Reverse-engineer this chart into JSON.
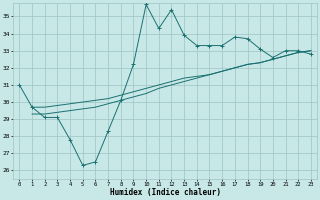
{
  "xlabel": "Humidex (Indice chaleur)",
  "background_color": "#c8e8e8",
  "grid_color": "#9ec4c4",
  "line_color": "#1a7070",
  "xlim": [
    -0.5,
    23.5
  ],
  "ylim": [
    25.5,
    35.8
  ],
  "xticks": [
    0,
    1,
    2,
    3,
    4,
    5,
    6,
    7,
    8,
    9,
    10,
    11,
    12,
    13,
    14,
    15,
    16,
    17,
    18,
    19,
    20,
    21,
    22,
    23
  ],
  "yticks": [
    26,
    27,
    28,
    29,
    30,
    31,
    32,
    33,
    34,
    35
  ],
  "line1_x": [
    0,
    1,
    2,
    3,
    4,
    5,
    6,
    7,
    8,
    9,
    10,
    11,
    12,
    13,
    14,
    15,
    16,
    17,
    18,
    19,
    20,
    21,
    22,
    23
  ],
  "line1_y": [
    31.0,
    29.7,
    29.1,
    29.1,
    27.8,
    26.3,
    26.5,
    28.3,
    30.1,
    32.2,
    35.7,
    34.3,
    35.4,
    33.9,
    33.3,
    33.3,
    33.3,
    33.8,
    33.7,
    33.1,
    32.6,
    33.0,
    33.0,
    32.8
  ],
  "line2_x": [
    1,
    2,
    3,
    4,
    5,
    6,
    7,
    8,
    9,
    10,
    11,
    12,
    13,
    14,
    15,
    16,
    17,
    18,
    19,
    20,
    21,
    22,
    23
  ],
  "line2_y": [
    29.7,
    29.7,
    29.8,
    29.9,
    30.0,
    30.1,
    30.2,
    30.4,
    30.6,
    30.8,
    31.0,
    31.2,
    31.4,
    31.5,
    31.6,
    31.8,
    32.0,
    32.2,
    32.3,
    32.5,
    32.7,
    32.9,
    33.0
  ],
  "line3_x": [
    1,
    2,
    3,
    4,
    5,
    6,
    7,
    8,
    9,
    10,
    11,
    12,
    13,
    14,
    15,
    16,
    17,
    18,
    19,
    20,
    21,
    22,
    23
  ],
  "line3_y": [
    29.3,
    29.3,
    29.4,
    29.5,
    29.6,
    29.7,
    29.9,
    30.1,
    30.3,
    30.5,
    30.8,
    31.0,
    31.2,
    31.4,
    31.6,
    31.8,
    32.0,
    32.2,
    32.3,
    32.5,
    32.7,
    32.9,
    33.0
  ]
}
